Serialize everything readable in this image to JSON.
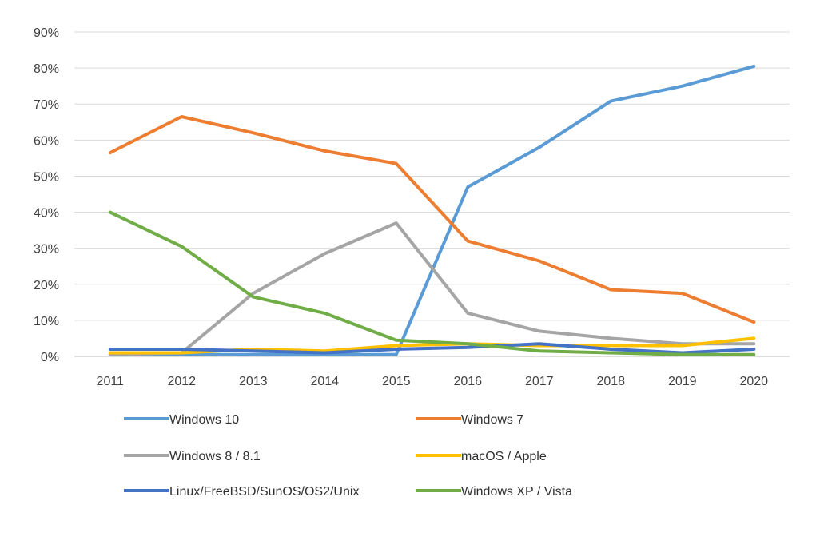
{
  "chart_data": {
    "type": "line",
    "title": "",
    "xlabel": "",
    "ylabel": "",
    "ylim": [
      0,
      90
    ],
    "y_ticks": [
      "0%",
      "10%",
      "20%",
      "30%",
      "40%",
      "50%",
      "60%",
      "70%",
      "80%",
      "90%"
    ],
    "y_tick_values": [
      0,
      10,
      20,
      30,
      40,
      50,
      60,
      70,
      80,
      90
    ],
    "grid": true,
    "legend_position": "bottom",
    "categories": [
      "2011",
      "2012",
      "2013",
      "2014",
      "2015",
      "2016",
      "2017",
      "2018",
      "2019",
      "2020"
    ],
    "series": [
      {
        "name": "Windows 10",
        "color": "#5b9bd5",
        "values": [
          0.5,
          0.5,
          0.5,
          0.5,
          0.5,
          47,
          58,
          70.8,
          75,
          80.5
        ]
      },
      {
        "name": "Windows 7",
        "color": "#ed7d31",
        "values": [
          56.5,
          66.5,
          62,
          57,
          53.5,
          32,
          26.5,
          18.5,
          17.5,
          9.5
        ]
      },
      {
        "name": "Windows 8 / 8.1",
        "color": "#a5a5a5",
        "values": [
          0.5,
          1,
          17.5,
          28.5,
          37,
          12,
          7,
          5,
          3.5,
          3.5
        ]
      },
      {
        "name": "macOS / Apple",
        "color": "#ffc000",
        "values": [
          1,
          1,
          2,
          1.5,
          3,
          3.5,
          3,
          3,
          3,
          5
        ]
      },
      {
        "name": "Linux/FreeBSD/SunOS/OS2/Unix",
        "color": "#4472c4",
        "values": [
          2,
          2,
          1.5,
          1,
          2,
          2.5,
          3.5,
          2,
          1,
          2
        ]
      },
      {
        "name": "Windows XP / Vista",
        "color": "#70ad47",
        "values": [
          40,
          30.5,
          16.5,
          12,
          4.5,
          3.5,
          1.5,
          1,
          0.5,
          0.5
        ]
      }
    ]
  }
}
